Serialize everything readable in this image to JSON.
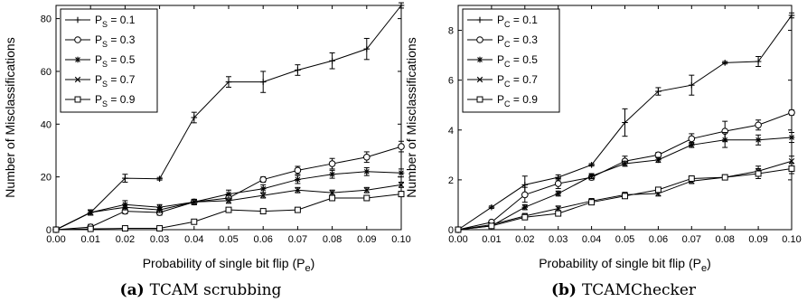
{
  "chart_data": [
    {
      "type": "line",
      "caption_prefix": "(a)",
      "caption_text": "TCAM scrubbing",
      "xlabel": "Probability of single bit flip (P",
      "xlabel_sub": "e",
      "xlabel_suffix": ")",
      "ylabel": "Number of Misclassifications",
      "xlim": [
        0,
        0.1
      ],
      "ylim": [
        0,
        85
      ],
      "xticks": [
        0.0,
        0.01,
        0.02,
        0.03,
        0.04,
        0.05,
        0.06,
        0.07,
        0.08,
        0.09,
        0.1
      ],
      "xtick_labels": [
        "0.00",
        "0.01",
        "0.02",
        "0.03",
        "0.04",
        "0.05",
        "0.06",
        "0.07",
        "0.08",
        "0.09",
        "0.10"
      ],
      "yticks": [
        0,
        20,
        40,
        60,
        80
      ],
      "ytick_labels": [
        "0",
        "20",
        "40",
        "60",
        "80"
      ],
      "grid": false,
      "legend_position": "top-left",
      "series": [
        {
          "name_main": "P",
          "name_sub": "S",
          "name_value": " = 0.1",
          "marker": "plus",
          "values": [
            0,
            6.5,
            19.5,
            19.3,
            42.5,
            56,
            56,
            60.5,
            64,
            68.5,
            85
          ],
          "errors": [
            0,
            1,
            1.5,
            0.5,
            2,
            2,
            4,
            2,
            3,
            4,
            1
          ]
        },
        {
          "name_main": "P",
          "name_sub": "S",
          "name_value": " = 0.3",
          "marker": "circle",
          "values": [
            0,
            1,
            7,
            6.5,
            10.5,
            12,
            19,
            22.5,
            25,
            27.5,
            31.5
          ],
          "errors": [
            0,
            1,
            1,
            1,
            1,
            1,
            1,
            1.5,
            2,
            2,
            2
          ]
        },
        {
          "name_main": "P",
          "name_sub": "S",
          "name_value": " = 0.5",
          "marker": "star",
          "values": [
            0,
            6.5,
            9.5,
            8.5,
            10.5,
            13.5,
            15.5,
            19,
            21,
            22,
            21.5
          ],
          "errors": [
            0,
            1,
            1.5,
            1,
            1,
            1.5,
            1.5,
            1.5,
            1.5,
            1.5,
            1.5
          ]
        },
        {
          "name_main": "P",
          "name_sub": "S",
          "name_value": " = 0.7",
          "marker": "cross",
          "values": [
            0,
            6.5,
            8.5,
            7.5,
            10.5,
            11,
            13,
            15,
            14,
            15,
            17
          ],
          "errors": [
            0,
            1,
            1,
            1,
            1,
            1,
            1,
            1,
            1,
            1,
            1
          ]
        },
        {
          "name_main": "P",
          "name_sub": "S",
          "name_value": " = 0.9",
          "marker": "square",
          "values": [
            0,
            0.3,
            0.5,
            0.5,
            3,
            7.5,
            7,
            7.5,
            12,
            12,
            13.5
          ],
          "errors": [
            0,
            0.3,
            0.5,
            0.5,
            0.5,
            0.5,
            0.5,
            0.5,
            1,
            1,
            1
          ]
        }
      ]
    },
    {
      "type": "line",
      "caption_prefix": "(b)",
      "caption_text": "TCAMChecker",
      "xlabel": "Probability of single bit flip (P",
      "xlabel_sub": "e",
      "xlabel_suffix": ")",
      "ylabel": "Number of Misclassifications",
      "xlim": [
        0,
        0.1
      ],
      "ylim": [
        0,
        9
      ],
      "xticks": [
        0.0,
        0.01,
        0.02,
        0.03,
        0.04,
        0.05,
        0.06,
        0.07,
        0.08,
        0.09,
        0.1
      ],
      "xtick_labels": [
        "0.00",
        "0.01",
        "0.02",
        "0.03",
        "0.04",
        "0.05",
        "0.06",
        "0.07",
        "0.08",
        "0.09",
        "0.10"
      ],
      "yticks": [
        0,
        2,
        4,
        6,
        8
      ],
      "ytick_labels": [
        "0",
        "2",
        "4",
        "6",
        "8"
      ],
      "grid": false,
      "legend_position": "top-left",
      "series": [
        {
          "name_main": "P",
          "name_sub": "C",
          "name_value": " = 0.1",
          "marker": "plus",
          "values": [
            0,
            0.9,
            1.8,
            2.1,
            2.6,
            4.3,
            5.55,
            5.8,
            6.7,
            6.75,
            8.6
          ],
          "errors": [
            0,
            0.05,
            0.35,
            0.1,
            0.05,
            0.55,
            0.15,
            0.4,
            0.05,
            0.2,
            0.1
          ]
        },
        {
          "name_main": "P",
          "name_sub": "C",
          "name_value": " = 0.3",
          "marker": "circle",
          "values": [
            0,
            0.3,
            1.4,
            1.85,
            2.1,
            2.75,
            3.0,
            3.65,
            3.95,
            4.2,
            4.7
          ],
          "errors": [
            0,
            0.05,
            0.3,
            0.2,
            0.1,
            0.2,
            0.1,
            0.2,
            0.4,
            0.2,
            0.1
          ]
        },
        {
          "name_main": "P",
          "name_sub": "C",
          "name_value": " = 0.5",
          "marker": "star",
          "values": [
            0,
            0.15,
            0.9,
            1.45,
            2.15,
            2.65,
            2.8,
            3.4,
            3.6,
            3.6,
            3.7
          ],
          "errors": [
            0,
            0.05,
            0.1,
            0.1,
            0.1,
            0.1,
            0.1,
            0.1,
            0.3,
            0.2,
            0.2
          ]
        },
        {
          "name_main": "P",
          "name_sub": "C",
          "name_value": " = 0.7",
          "marker": "cross",
          "values": [
            0,
            0.2,
            0.55,
            0.85,
            1.15,
            1.4,
            1.45,
            1.95,
            2.1,
            2.35,
            2.75
          ],
          "errors": [
            0,
            0.05,
            0.1,
            0.1,
            0.1,
            0.1,
            0.1,
            0.1,
            0.1,
            0.2,
            0.2
          ]
        },
        {
          "name_main": "P",
          "name_sub": "C",
          "name_value": " = 0.9",
          "marker": "square",
          "values": [
            0,
            0.15,
            0.5,
            0.65,
            1.1,
            1.35,
            1.6,
            2.05,
            2.1,
            2.25,
            2.45
          ],
          "errors": [
            0,
            0.05,
            0.1,
            0.1,
            0.1,
            0.1,
            0.1,
            0.1,
            0.1,
            0.2,
            0.2
          ]
        }
      ]
    }
  ]
}
